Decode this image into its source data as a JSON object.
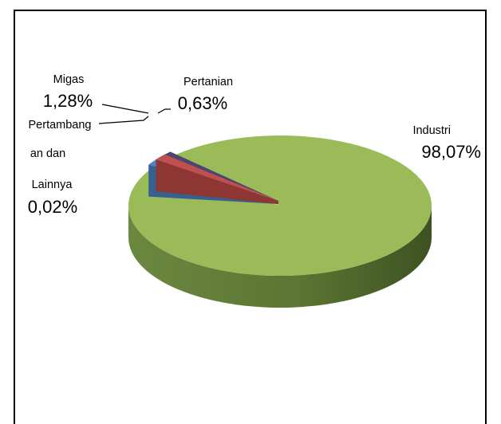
{
  "chart_data": {
    "type": "pie",
    "style": "3d-exploded",
    "categories": [
      "Industri",
      "Migas",
      "Pertanian",
      "Pertambangan dan Lainnya"
    ],
    "values": [
      98.07,
      1.28,
      0.63,
      0.02
    ],
    "slices": [
      {
        "name_lines": [
          "Industri"
        ],
        "value_label": "98,07%",
        "color": "#9bbb59",
        "dark": "#6f8a3c"
      },
      {
        "name_lines": [
          "Migas"
        ],
        "value_label": "1,28%",
        "color": "#4f81bd",
        "dark": "#35608f"
      },
      {
        "name_lines": [
          "Pertanian"
        ],
        "value_label": "0,63%",
        "color": "#c0504d",
        "dark": "#8e3634"
      },
      {
        "name_lines": [
          "Pertambang",
          "an dan",
          "Lainnya"
        ],
        "value_label": "0,02%",
        "color": "#4d4571",
        "dark": "#2d2748"
      }
    ],
    "legend": "none"
  }
}
